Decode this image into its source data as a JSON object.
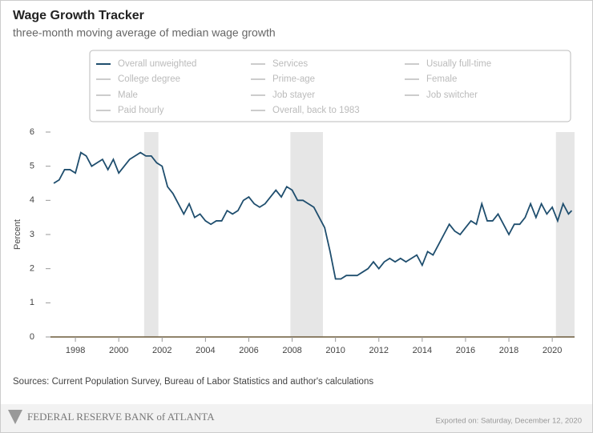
{
  "chart_data": {
    "type": "line",
    "title": "Wage Growth Tracker",
    "subtitle": "three-month moving average of median wage growth",
    "y_label": "Percent",
    "source": "Sources: Current Population Survey, Bureau of Labor Statistics and author's calculations",
    "footer_left": "FEDERAL RESERVE BANK of ATLANTA",
    "footer_right": "Exported on: Saturday, December 12, 2020",
    "x": [
      1997.0,
      1997.25,
      1997.5,
      1997.75,
      1998.0,
      1998.25,
      1998.5,
      1998.75,
      1999.0,
      1999.25,
      1999.5,
      1999.75,
      2000.0,
      2000.25,
      2000.5,
      2000.75,
      2001.0,
      2001.25,
      2001.5,
      2001.75,
      2002.0,
      2002.25,
      2002.5,
      2002.75,
      2003.0,
      2003.25,
      2003.5,
      2003.75,
      2004.0,
      2004.25,
      2004.5,
      2004.75,
      2005.0,
      2005.25,
      2005.5,
      2005.75,
      2006.0,
      2006.25,
      2006.5,
      2006.75,
      2007.0,
      2007.25,
      2007.5,
      2007.75,
      2008.0,
      2008.25,
      2008.5,
      2008.75,
      2009.0,
      2009.25,
      2009.5,
      2009.75,
      2010.0,
      2010.25,
      2010.5,
      2010.75,
      2011.0,
      2011.25,
      2011.5,
      2011.75,
      2012.0,
      2012.25,
      2012.5,
      2012.75,
      2013.0,
      2013.25,
      2013.5,
      2013.75,
      2014.0,
      2014.25,
      2014.5,
      2014.75,
      2015.0,
      2015.25,
      2015.5,
      2015.75,
      2016.0,
      2016.25,
      2016.5,
      2016.75,
      2017.0,
      2017.25,
      2017.5,
      2017.75,
      2018.0,
      2018.25,
      2018.5,
      2018.75,
      2019.0,
      2019.25,
      2019.5,
      2019.75,
      2020.0,
      2020.25,
      2020.5,
      2020.75,
      2020.9
    ],
    "series": [
      {
        "name": "Overall unweighted",
        "color": "#1f4e6e",
        "values": [
          4.5,
          4.6,
          4.9,
          4.9,
          4.8,
          5.4,
          5.3,
          5.0,
          5.1,
          5.2,
          4.9,
          5.2,
          4.8,
          5.0,
          5.2,
          5.3,
          5.4,
          5.3,
          5.3,
          5.1,
          5.0,
          4.4,
          4.2,
          3.9,
          3.6,
          3.9,
          3.5,
          3.6,
          3.4,
          3.3,
          3.4,
          3.4,
          3.7,
          3.6,
          3.7,
          4.0,
          4.1,
          3.9,
          3.8,
          3.9,
          4.1,
          4.3,
          4.1,
          4.4,
          4.3,
          4.0,
          4.0,
          3.9,
          3.8,
          3.5,
          3.2,
          2.5,
          1.7,
          1.7,
          1.8,
          1.8,
          1.8,
          1.9,
          2.0,
          2.2,
          2.0,
          2.2,
          2.3,
          2.2,
          2.3,
          2.2,
          2.3,
          2.4,
          2.1,
          2.5,
          2.4,
          2.7,
          3.0,
          3.3,
          3.1,
          3.0,
          3.2,
          3.4,
          3.3,
          3.9,
          3.4,
          3.4,
          3.6,
          3.3,
          3.0,
          3.3,
          3.3,
          3.5,
          3.9,
          3.5,
          3.9,
          3.6,
          3.8,
          3.4,
          3.9,
          3.6,
          3.7
        ]
      }
    ],
    "inactive_legend": [
      "Services",
      "Usually full-time",
      "College degree",
      "Prime-age",
      "Female",
      "Male",
      "Job stayer",
      "Job switcher",
      "Paid hourly",
      "Overall, back to 1983"
    ],
    "shaded_periods": [
      [
        2001.17,
        2001.83
      ],
      [
        2007.92,
        2009.42
      ],
      [
        2020.17,
        2021.03
      ]
    ],
    "xlim": [
      1996.85,
      2021.03
    ],
    "ylim": [
      0,
      6
    ],
    "xticks": [
      1998,
      2000,
      2002,
      2004,
      2006,
      2008,
      2010,
      2012,
      2014,
      2016,
      2018,
      2020
    ],
    "yticks": [
      0,
      1,
      2,
      3,
      4,
      5,
      6
    ]
  }
}
